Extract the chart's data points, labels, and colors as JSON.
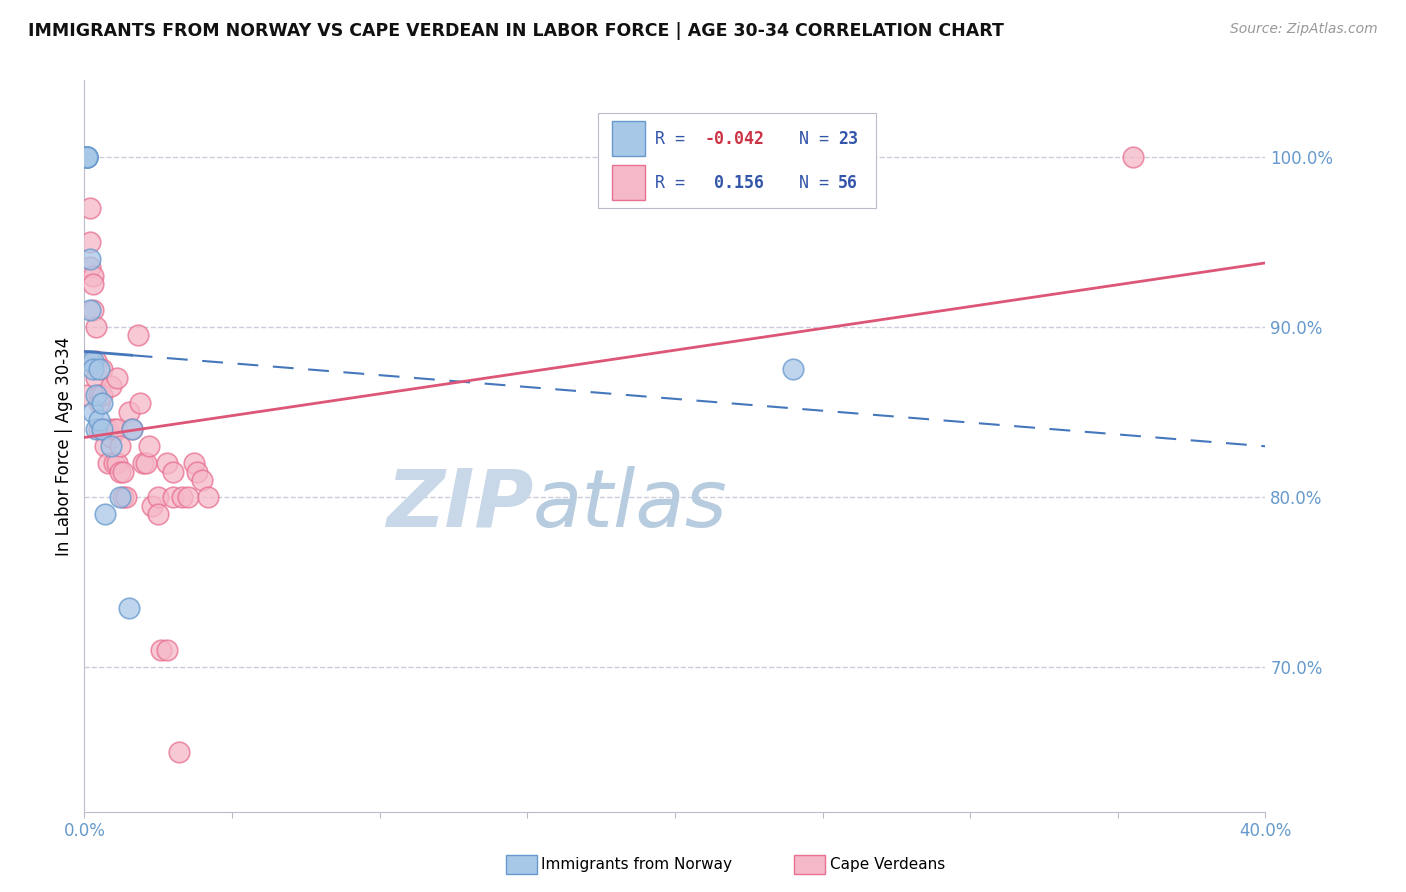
{
  "title": "IMMIGRANTS FROM NORWAY VS CAPE VERDEAN IN LABOR FORCE | AGE 30-34 CORRELATION CHART",
  "source": "Source: ZipAtlas.com",
  "ylabel": "In Labor Force | Age 30-34",
  "legend_label_norway": "Immigrants from Norway",
  "legend_label_cape": "Cape Verdeans",
  "norway_R": -0.042,
  "norway_N": 23,
  "cape_R": 0.156,
  "cape_N": 56,
  "xlim": [
    0.0,
    0.4
  ],
  "ylim": [
    0.615,
    1.045
  ],
  "yticks": [
    0.7,
    0.8,
    0.9,
    1.0
  ],
  "xticks": [
    0.0,
    0.05,
    0.1,
    0.15,
    0.2,
    0.25,
    0.3,
    0.35,
    0.4
  ],
  "norway_color": "#A8C8E8",
  "cape_color": "#F5B8C8",
  "norway_edge_color": "#6699CC",
  "cape_edge_color": "#E87090",
  "norway_trendline_color": "#4477BB",
  "cape_trendline_color": "#DD5577",
  "watermark_color": "#C8D8E8",
  "background_color": "#FFFFFF",
  "grid_color": "#CCCCDD",
  "axis_tick_color": "#6699CC",
  "legend_text_color": "#3355AA",
  "norway_R_color": "#CC3344",
  "cape_R_color": "#3355AA",
  "norway_x": [
    0.001,
    0.001,
    0.001,
    0.001,
    0.001,
    0.002,
    0.002,
    0.002,
    0.003,
    0.003,
    0.003,
    0.004,
    0.004,
    0.005,
    0.005,
    0.006,
    0.006,
    0.007,
    0.009,
    0.012,
    0.015,
    0.016,
    0.24
  ],
  "norway_y": [
    1.0,
    1.0,
    1.0,
    1.0,
    1.0,
    0.94,
    0.91,
    0.88,
    0.88,
    0.875,
    0.85,
    0.86,
    0.84,
    0.875,
    0.845,
    0.855,
    0.84,
    0.79,
    0.83,
    0.8,
    0.735,
    0.84,
    0.875
  ],
  "cape_x": [
    0.001,
    0.001,
    0.002,
    0.002,
    0.002,
    0.003,
    0.003,
    0.003,
    0.004,
    0.004,
    0.004,
    0.005,
    0.005,
    0.005,
    0.006,
    0.006,
    0.006,
    0.007,
    0.007,
    0.008,
    0.008,
    0.009,
    0.009,
    0.01,
    0.01,
    0.011,
    0.011,
    0.011,
    0.012,
    0.012,
    0.013,
    0.013,
    0.014,
    0.015,
    0.016,
    0.018,
    0.019,
    0.02,
    0.021,
    0.022,
    0.023,
    0.025,
    0.025,
    0.026,
    0.028,
    0.028,
    0.03,
    0.03,
    0.032,
    0.033,
    0.035,
    0.037,
    0.038,
    0.04,
    0.042,
    0.355
  ],
  "cape_y": [
    0.88,
    0.86,
    0.97,
    0.95,
    0.935,
    0.93,
    0.925,
    0.91,
    0.9,
    0.88,
    0.87,
    0.86,
    0.855,
    0.84,
    0.875,
    0.86,
    0.84,
    0.84,
    0.83,
    0.84,
    0.82,
    0.865,
    0.835,
    0.84,
    0.82,
    0.87,
    0.84,
    0.82,
    0.83,
    0.815,
    0.815,
    0.8,
    0.8,
    0.85,
    0.84,
    0.895,
    0.855,
    0.82,
    0.82,
    0.83,
    0.795,
    0.8,
    0.79,
    0.71,
    0.71,
    0.82,
    0.815,
    0.8,
    0.65,
    0.8,
    0.8,
    0.82,
    0.815,
    0.81,
    0.8,
    1.0
  ]
}
